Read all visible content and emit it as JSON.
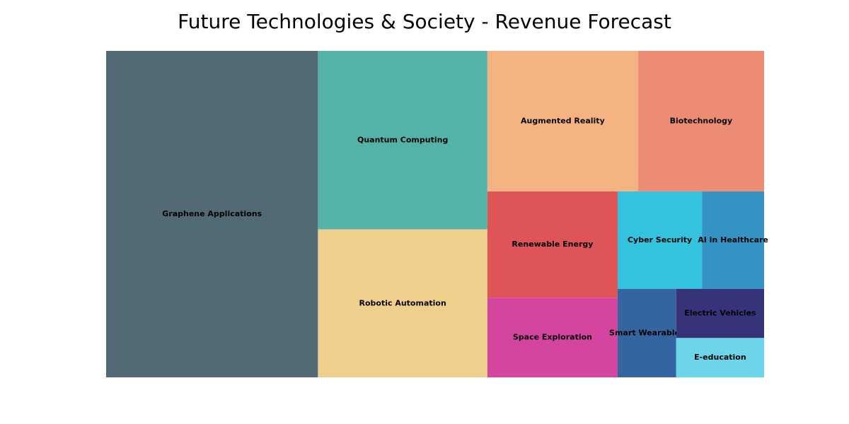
{
  "chart_data": {
    "type": "treemap",
    "title": "Future Technologies & Society - Revenue Forecast",
    "items": [
      {
        "label": "Graphene Applications",
        "value": 160,
        "color": "#526a73"
      },
      {
        "label": "Quantum Computing",
        "value": 70,
        "color": "#55b2a6"
      },
      {
        "label": "Robotic Automation",
        "value": 58,
        "color": "#eed08c"
      },
      {
        "label": "Augmented Reality",
        "value": 49,
        "color": "#f5b381"
      },
      {
        "label": "Biotechnology",
        "value": 41,
        "color": "#ed8c74"
      },
      {
        "label": "Renewable Energy",
        "value": 32,
        "color": "#df5456"
      },
      {
        "label": "Space Exploration",
        "value": 24,
        "color": "#d445a0"
      },
      {
        "label": "Cyber Security",
        "value": 19,
        "color": "#33c3df"
      },
      {
        "label": "AI in Healthcare",
        "value": 14,
        "color": "#3393c5"
      },
      {
        "label": "Smart Wearables",
        "value": 12,
        "color": "#3465a0"
      },
      {
        "label": "Electric Vehicles",
        "value": 10,
        "color": "#37337b"
      },
      {
        "label": "E-education",
        "value": 8,
        "color": "#6dd5ea"
      }
    ]
  }
}
